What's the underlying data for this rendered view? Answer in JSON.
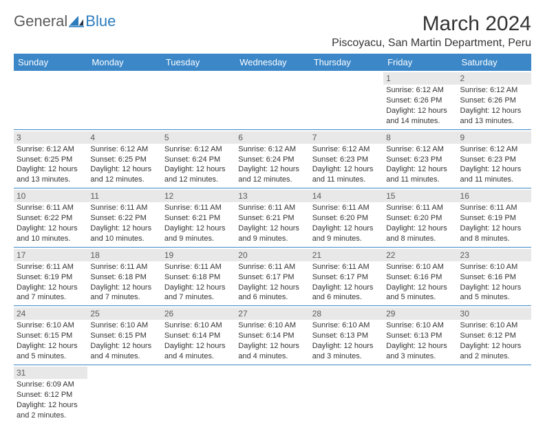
{
  "logo": {
    "text1": "General",
    "text2": "Blue"
  },
  "title": "March 2024",
  "subtitle": "Piscoyacu, San Martin Department, Peru",
  "colors": {
    "header_bg": "#3b87c8",
    "header_fg": "#ffffff",
    "daynum_bg": "#e8e8e8",
    "daynum_fg": "#5a5a5a",
    "border": "#3b87c8",
    "brand_blue": "#2b7bbd",
    "brand_gray": "#5a5a5a",
    "text": "#333333",
    "background": "#ffffff"
  },
  "weekdays": [
    "Sunday",
    "Monday",
    "Tuesday",
    "Wednesday",
    "Thursday",
    "Friday",
    "Saturday"
  ],
  "weeks": [
    [
      {
        "empty": true
      },
      {
        "empty": true
      },
      {
        "empty": true
      },
      {
        "empty": true
      },
      {
        "empty": true
      },
      {
        "day": "1",
        "sunrise": "Sunrise: 6:12 AM",
        "sunset": "Sunset: 6:26 PM",
        "daylight1": "Daylight: 12 hours",
        "daylight2": "and 14 minutes."
      },
      {
        "day": "2",
        "sunrise": "Sunrise: 6:12 AM",
        "sunset": "Sunset: 6:26 PM",
        "daylight1": "Daylight: 12 hours",
        "daylight2": "and 13 minutes."
      }
    ],
    [
      {
        "day": "3",
        "sunrise": "Sunrise: 6:12 AM",
        "sunset": "Sunset: 6:25 PM",
        "daylight1": "Daylight: 12 hours",
        "daylight2": "and 13 minutes."
      },
      {
        "day": "4",
        "sunrise": "Sunrise: 6:12 AM",
        "sunset": "Sunset: 6:25 PM",
        "daylight1": "Daylight: 12 hours",
        "daylight2": "and 12 minutes."
      },
      {
        "day": "5",
        "sunrise": "Sunrise: 6:12 AM",
        "sunset": "Sunset: 6:24 PM",
        "daylight1": "Daylight: 12 hours",
        "daylight2": "and 12 minutes."
      },
      {
        "day": "6",
        "sunrise": "Sunrise: 6:12 AM",
        "sunset": "Sunset: 6:24 PM",
        "daylight1": "Daylight: 12 hours",
        "daylight2": "and 12 minutes."
      },
      {
        "day": "7",
        "sunrise": "Sunrise: 6:12 AM",
        "sunset": "Sunset: 6:23 PM",
        "daylight1": "Daylight: 12 hours",
        "daylight2": "and 11 minutes."
      },
      {
        "day": "8",
        "sunrise": "Sunrise: 6:12 AM",
        "sunset": "Sunset: 6:23 PM",
        "daylight1": "Daylight: 12 hours",
        "daylight2": "and 11 minutes."
      },
      {
        "day": "9",
        "sunrise": "Sunrise: 6:12 AM",
        "sunset": "Sunset: 6:23 PM",
        "daylight1": "Daylight: 12 hours",
        "daylight2": "and 11 minutes."
      }
    ],
    [
      {
        "day": "10",
        "sunrise": "Sunrise: 6:11 AM",
        "sunset": "Sunset: 6:22 PM",
        "daylight1": "Daylight: 12 hours",
        "daylight2": "and 10 minutes."
      },
      {
        "day": "11",
        "sunrise": "Sunrise: 6:11 AM",
        "sunset": "Sunset: 6:22 PM",
        "daylight1": "Daylight: 12 hours",
        "daylight2": "and 10 minutes."
      },
      {
        "day": "12",
        "sunrise": "Sunrise: 6:11 AM",
        "sunset": "Sunset: 6:21 PM",
        "daylight1": "Daylight: 12 hours",
        "daylight2": "and 9 minutes."
      },
      {
        "day": "13",
        "sunrise": "Sunrise: 6:11 AM",
        "sunset": "Sunset: 6:21 PM",
        "daylight1": "Daylight: 12 hours",
        "daylight2": "and 9 minutes."
      },
      {
        "day": "14",
        "sunrise": "Sunrise: 6:11 AM",
        "sunset": "Sunset: 6:20 PM",
        "daylight1": "Daylight: 12 hours",
        "daylight2": "and 9 minutes."
      },
      {
        "day": "15",
        "sunrise": "Sunrise: 6:11 AM",
        "sunset": "Sunset: 6:20 PM",
        "daylight1": "Daylight: 12 hours",
        "daylight2": "and 8 minutes."
      },
      {
        "day": "16",
        "sunrise": "Sunrise: 6:11 AM",
        "sunset": "Sunset: 6:19 PM",
        "daylight1": "Daylight: 12 hours",
        "daylight2": "and 8 minutes."
      }
    ],
    [
      {
        "day": "17",
        "sunrise": "Sunrise: 6:11 AM",
        "sunset": "Sunset: 6:19 PM",
        "daylight1": "Daylight: 12 hours",
        "daylight2": "and 7 minutes."
      },
      {
        "day": "18",
        "sunrise": "Sunrise: 6:11 AM",
        "sunset": "Sunset: 6:18 PM",
        "daylight1": "Daylight: 12 hours",
        "daylight2": "and 7 minutes."
      },
      {
        "day": "19",
        "sunrise": "Sunrise: 6:11 AM",
        "sunset": "Sunset: 6:18 PM",
        "daylight1": "Daylight: 12 hours",
        "daylight2": "and 7 minutes."
      },
      {
        "day": "20",
        "sunrise": "Sunrise: 6:11 AM",
        "sunset": "Sunset: 6:17 PM",
        "daylight1": "Daylight: 12 hours",
        "daylight2": "and 6 minutes."
      },
      {
        "day": "21",
        "sunrise": "Sunrise: 6:11 AM",
        "sunset": "Sunset: 6:17 PM",
        "daylight1": "Daylight: 12 hours",
        "daylight2": "and 6 minutes."
      },
      {
        "day": "22",
        "sunrise": "Sunrise: 6:10 AM",
        "sunset": "Sunset: 6:16 PM",
        "daylight1": "Daylight: 12 hours",
        "daylight2": "and 5 minutes."
      },
      {
        "day": "23",
        "sunrise": "Sunrise: 6:10 AM",
        "sunset": "Sunset: 6:16 PM",
        "daylight1": "Daylight: 12 hours",
        "daylight2": "and 5 minutes."
      }
    ],
    [
      {
        "day": "24",
        "sunrise": "Sunrise: 6:10 AM",
        "sunset": "Sunset: 6:15 PM",
        "daylight1": "Daylight: 12 hours",
        "daylight2": "and 5 minutes."
      },
      {
        "day": "25",
        "sunrise": "Sunrise: 6:10 AM",
        "sunset": "Sunset: 6:15 PM",
        "daylight1": "Daylight: 12 hours",
        "daylight2": "and 4 minutes."
      },
      {
        "day": "26",
        "sunrise": "Sunrise: 6:10 AM",
        "sunset": "Sunset: 6:14 PM",
        "daylight1": "Daylight: 12 hours",
        "daylight2": "and 4 minutes."
      },
      {
        "day": "27",
        "sunrise": "Sunrise: 6:10 AM",
        "sunset": "Sunset: 6:14 PM",
        "daylight1": "Daylight: 12 hours",
        "daylight2": "and 4 minutes."
      },
      {
        "day": "28",
        "sunrise": "Sunrise: 6:10 AM",
        "sunset": "Sunset: 6:13 PM",
        "daylight1": "Daylight: 12 hours",
        "daylight2": "and 3 minutes."
      },
      {
        "day": "29",
        "sunrise": "Sunrise: 6:10 AM",
        "sunset": "Sunset: 6:13 PM",
        "daylight1": "Daylight: 12 hours",
        "daylight2": "and 3 minutes."
      },
      {
        "day": "30",
        "sunrise": "Sunrise: 6:10 AM",
        "sunset": "Sunset: 6:12 PM",
        "daylight1": "Daylight: 12 hours",
        "daylight2": "and 2 minutes."
      }
    ],
    [
      {
        "day": "31",
        "sunrise": "Sunrise: 6:09 AM",
        "sunset": "Sunset: 6:12 PM",
        "daylight1": "Daylight: 12 hours",
        "daylight2": "and 2 minutes."
      },
      {
        "empty": true
      },
      {
        "empty": true
      },
      {
        "empty": true
      },
      {
        "empty": true
      },
      {
        "empty": true
      },
      {
        "empty": true
      }
    ]
  ]
}
